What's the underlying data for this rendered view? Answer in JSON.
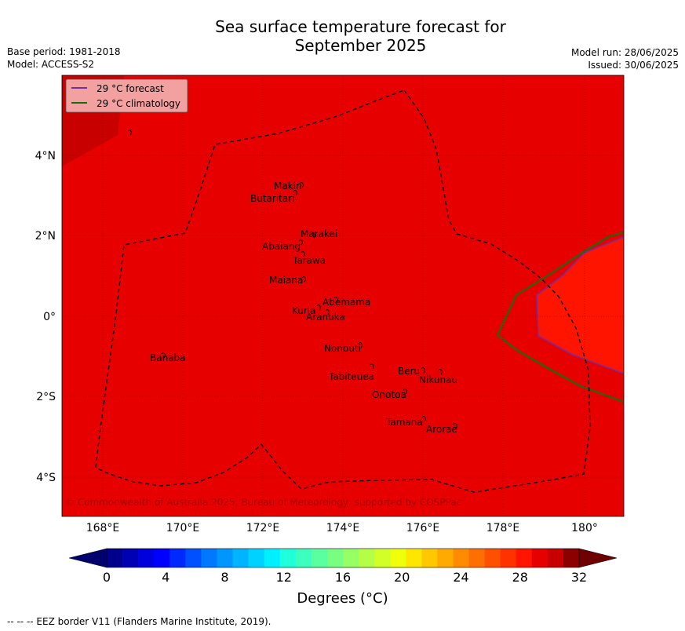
{
  "title_line1": "Sea surface temperature forecast for",
  "title_line2": "September 2025",
  "meta_left": [
    "Base period: 1981-2018",
    "Model: ACCESS-S2"
  ],
  "meta_right": [
    "Model run: 28/06/2025",
    "Issued: 30/06/2025"
  ],
  "legend": [
    {
      "label": "29 °C  forecast",
      "color": "#7a2aa0"
    },
    {
      "label": "29 °C  climatology",
      "color": "#1a6b10"
    }
  ],
  "x_ticks": [
    "168°E",
    "170°E",
    "172°E",
    "174°E",
    "176°E",
    "178°E",
    "180°"
  ],
  "y_ticks": [
    "4°N",
    "2°N",
    "0°",
    "2°S",
    "4°S"
  ],
  "islands": [
    "Makin",
    "Butaritari",
    "Marakei",
    "Abaiang",
    "Tarawa",
    "Maiana",
    "Abemama",
    "Kuria",
    "Aranuka",
    "Nonouti",
    "Banaba",
    "Beru",
    "Tabiteuea",
    "Nikunau",
    "Onotoa",
    "Tamana",
    "Arorae"
  ],
  "copyright": "© Commonwealth of Australia 2025, Bureau of Meteorology, supported by COSPPac",
  "colorbar": {
    "tick_labels": [
      "0",
      "4",
      "8",
      "12",
      "16",
      "20",
      "24",
      "28",
      "32"
    ],
    "colors": [
      "#00008c",
      "#0000b4",
      "#0000dc",
      "#0000ff",
      "#0028ff",
      "#0050ff",
      "#0078ff",
      "#0096ff",
      "#00b4ff",
      "#00d2ff",
      "#00f0ff",
      "#1effdc",
      "#3cffbe",
      "#5affa0",
      "#78ff82",
      "#96ff64",
      "#b4ff46",
      "#d2ff28",
      "#f0ff0a",
      "#ffe600",
      "#ffc800",
      "#ffaa00",
      "#ff8c00",
      "#ff6e00",
      "#ff5000",
      "#ff3200",
      "#ff1400",
      "#e60000",
      "#c80000",
      "#8c0000"
    ],
    "under_color": "#00006e",
    "over_color": "#6e0000",
    "label": "Degrees (°C)"
  },
  "footnote": "--  --  -- EEZ border V11 (Flanders Marine Institute, 2019).",
  "colors": {
    "ocean_main": "#e60000",
    "ocean_warm": "#ff1400",
    "ocean_cool": "#c80000"
  }
}
